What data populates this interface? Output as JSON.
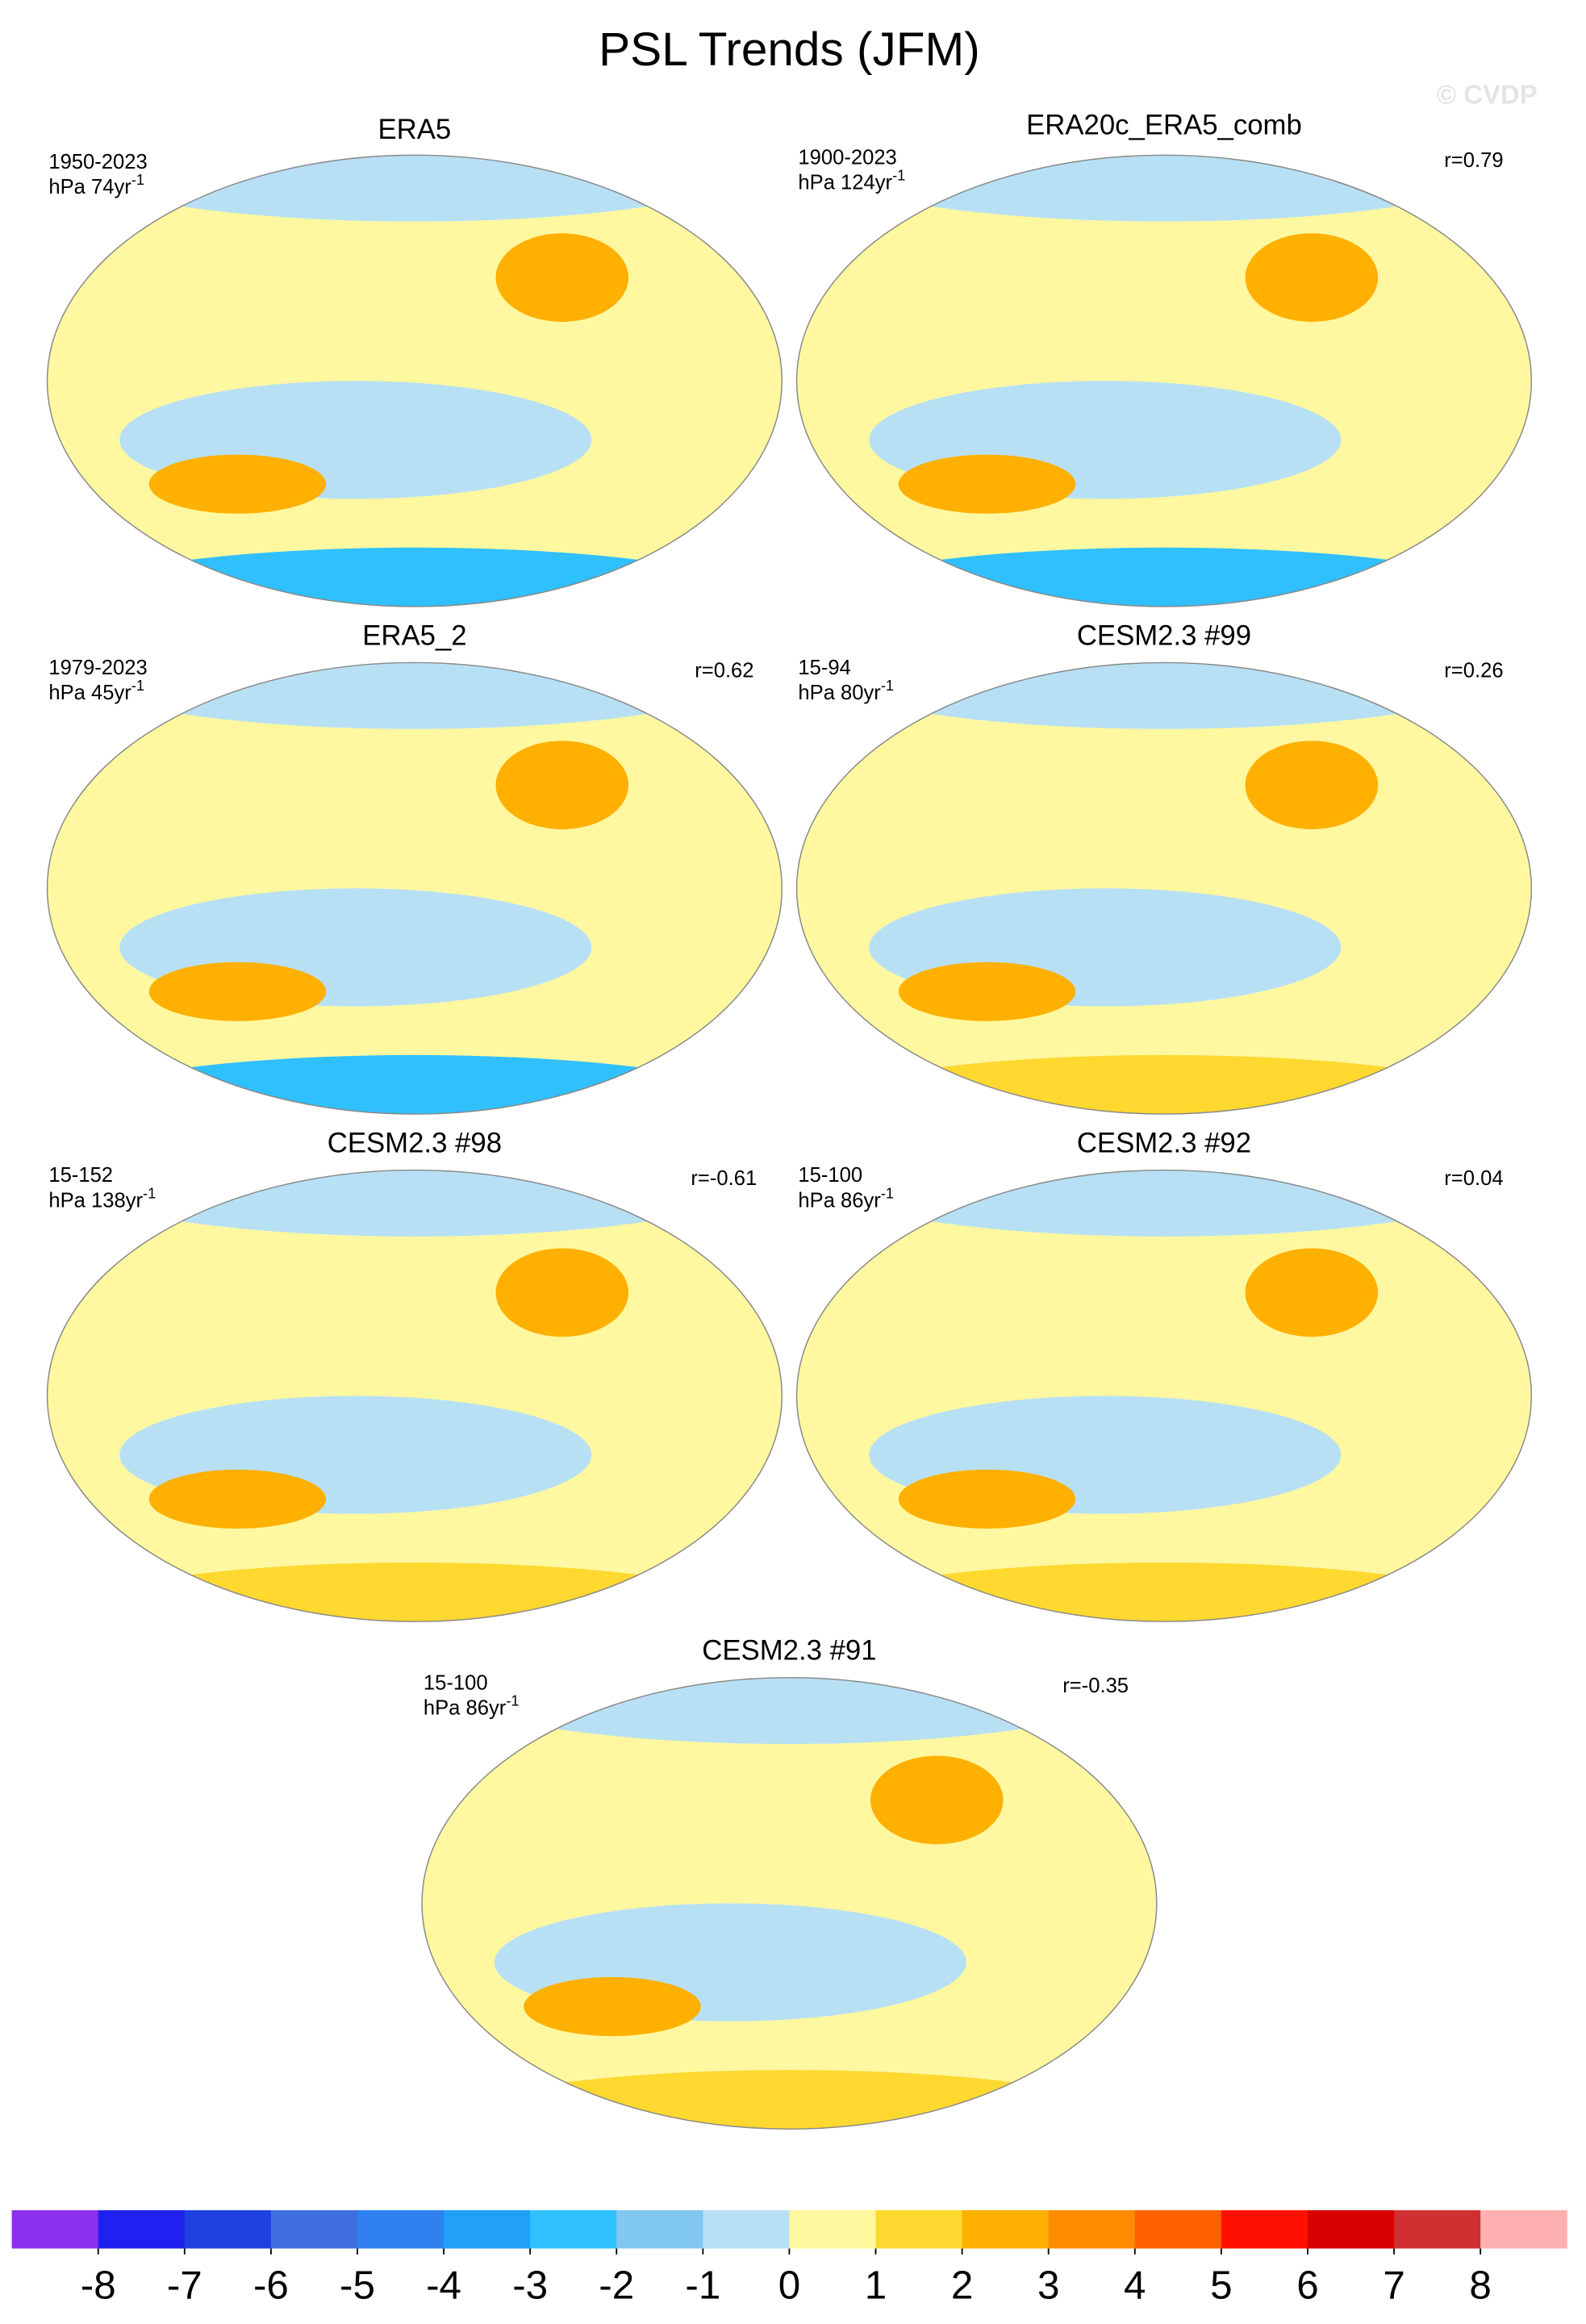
{
  "chart_data": {
    "type": "map",
    "title": "PSL Trends (JFM)",
    "watermark": "© CVDP",
    "panels": [
      {
        "title": "ERA5",
        "period": "1950-2023",
        "units": "hPa 74yr",
        "units_exponent": "-1"
      },
      {
        "title": "ERA20c_ERA5_comb",
        "period": "1900-2023",
        "units": "hPa 124yr",
        "units_exponent": "-1",
        "r": "r=0.79"
      },
      {
        "title": "ERA5_2",
        "period": "1979-2023",
        "units": "hPa 45yr",
        "units_exponent": "-1",
        "r": "r=0.62"
      },
      {
        "title": "CESM2.3 #99",
        "period": "15-94",
        "units": "hPa 80yr",
        "units_exponent": "-1",
        "r": "r=0.26"
      },
      {
        "title": "CESM2.3 #98",
        "period": "15-152",
        "units": "hPa 138yr",
        "units_exponent": "-1",
        "r": "r=-0.61"
      },
      {
        "title": "CESM2.3 #92",
        "period": "15-100",
        "units": "hPa 86yr",
        "units_exponent": "-1",
        "r": "r=0.04"
      },
      {
        "title": "CESM2.3 #91",
        "period": "15-100",
        "units": "hPa 86yr",
        "units_exponent": "-1",
        "r": "r=-0.35"
      }
    ],
    "colorbar": {
      "colors": [
        "#8C30F0",
        "#2020F0",
        "#2040E0",
        "#4070E0",
        "#3080F0",
        "#20A0F8",
        "#30C0FF",
        "#80C8F0",
        "#B8E0F4",
        "#FFF8A0",
        "#FFD830",
        "#FFB000",
        "#FF8C00",
        "#FF6000",
        "#FF1000",
        "#D80000",
        "#D03030",
        "#FFB0B0"
      ],
      "ticks": [
        -8,
        -7,
        -6,
        -5,
        -4,
        -3,
        -2,
        -1,
        0,
        1,
        2,
        3,
        4,
        5,
        6,
        7,
        8
      ]
    }
  }
}
